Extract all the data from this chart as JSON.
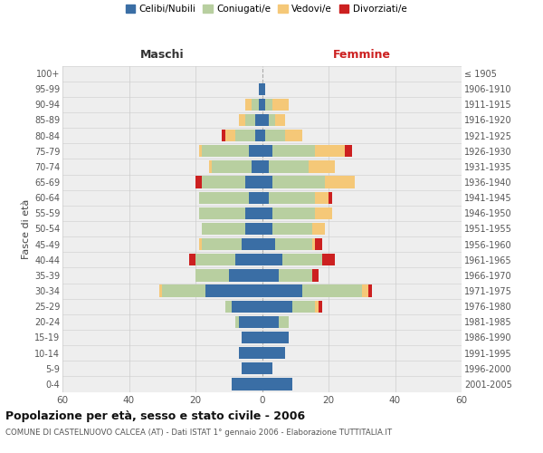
{
  "age_groups": [
    "0-4",
    "5-9",
    "10-14",
    "15-19",
    "20-24",
    "25-29",
    "30-34",
    "35-39",
    "40-44",
    "45-49",
    "50-54",
    "55-59",
    "60-64",
    "65-69",
    "70-74",
    "75-79",
    "80-84",
    "85-89",
    "90-94",
    "95-99",
    "100+"
  ],
  "birth_years": [
    "2001-2005",
    "1996-2000",
    "1991-1995",
    "1986-1990",
    "1981-1985",
    "1976-1980",
    "1971-1975",
    "1966-1970",
    "1961-1965",
    "1956-1960",
    "1951-1955",
    "1946-1950",
    "1941-1945",
    "1936-1940",
    "1931-1935",
    "1926-1930",
    "1921-1925",
    "1916-1920",
    "1911-1915",
    "1906-1910",
    "≤ 1905"
  ],
  "male": {
    "celibi": [
      9,
      6,
      7,
      6,
      7,
      9,
      17,
      10,
      8,
      6,
      5,
      5,
      4,
      5,
      3,
      4,
      2,
      2,
      1,
      1,
      0
    ],
    "coniugati": [
      0,
      0,
      0,
      0,
      1,
      2,
      13,
      10,
      12,
      12,
      13,
      14,
      15,
      13,
      12,
      14,
      6,
      3,
      2,
      0,
      0
    ],
    "vedovi": [
      0,
      0,
      0,
      0,
      0,
      0,
      1,
      0,
      0,
      1,
      0,
      0,
      0,
      0,
      1,
      1,
      3,
      2,
      2,
      0,
      0
    ],
    "divorziati": [
      0,
      0,
      0,
      0,
      0,
      0,
      0,
      0,
      2,
      0,
      0,
      0,
      0,
      2,
      0,
      0,
      1,
      0,
      0,
      0,
      0
    ]
  },
  "female": {
    "nubili": [
      9,
      3,
      7,
      8,
      5,
      9,
      12,
      5,
      6,
      4,
      3,
      3,
      2,
      3,
      2,
      3,
      1,
      2,
      1,
      1,
      0
    ],
    "coniugate": [
      0,
      0,
      0,
      0,
      3,
      7,
      18,
      10,
      12,
      11,
      12,
      13,
      14,
      16,
      12,
      13,
      6,
      2,
      2,
      0,
      0
    ],
    "vedove": [
      0,
      0,
      0,
      0,
      0,
      1,
      2,
      0,
      0,
      1,
      4,
      5,
      4,
      9,
      8,
      9,
      5,
      3,
      5,
      0,
      0
    ],
    "divorziate": [
      0,
      0,
      0,
      0,
      0,
      1,
      1,
      2,
      4,
      2,
      0,
      0,
      1,
      0,
      0,
      2,
      0,
      0,
      0,
      0,
      0
    ]
  },
  "colors": {
    "celibi": "#3a6ea5",
    "coniugati": "#b8cfa0",
    "vedovi": "#f5c878",
    "divorziati": "#cc2020"
  },
  "xlim": 60,
  "title": "Popolazione per età, sesso e stato civile - 2006",
  "subtitle": "COMUNE DI CASTELNUOVO CALCEA (AT) - Dati ISTAT 1° gennaio 2006 - Elaborazione TUTTITALIA.IT",
  "ylabel_left": "Fasce di età",
  "xlabel_left": "Maschi",
  "xlabel_right": "Femmine",
  "legend_labels": [
    "Celibi/Nubili",
    "Coniugati/e",
    "Vedovi/e",
    "Divorziati/e"
  ],
  "bg_color": "#eeeeee",
  "grid_color": "#cccccc"
}
